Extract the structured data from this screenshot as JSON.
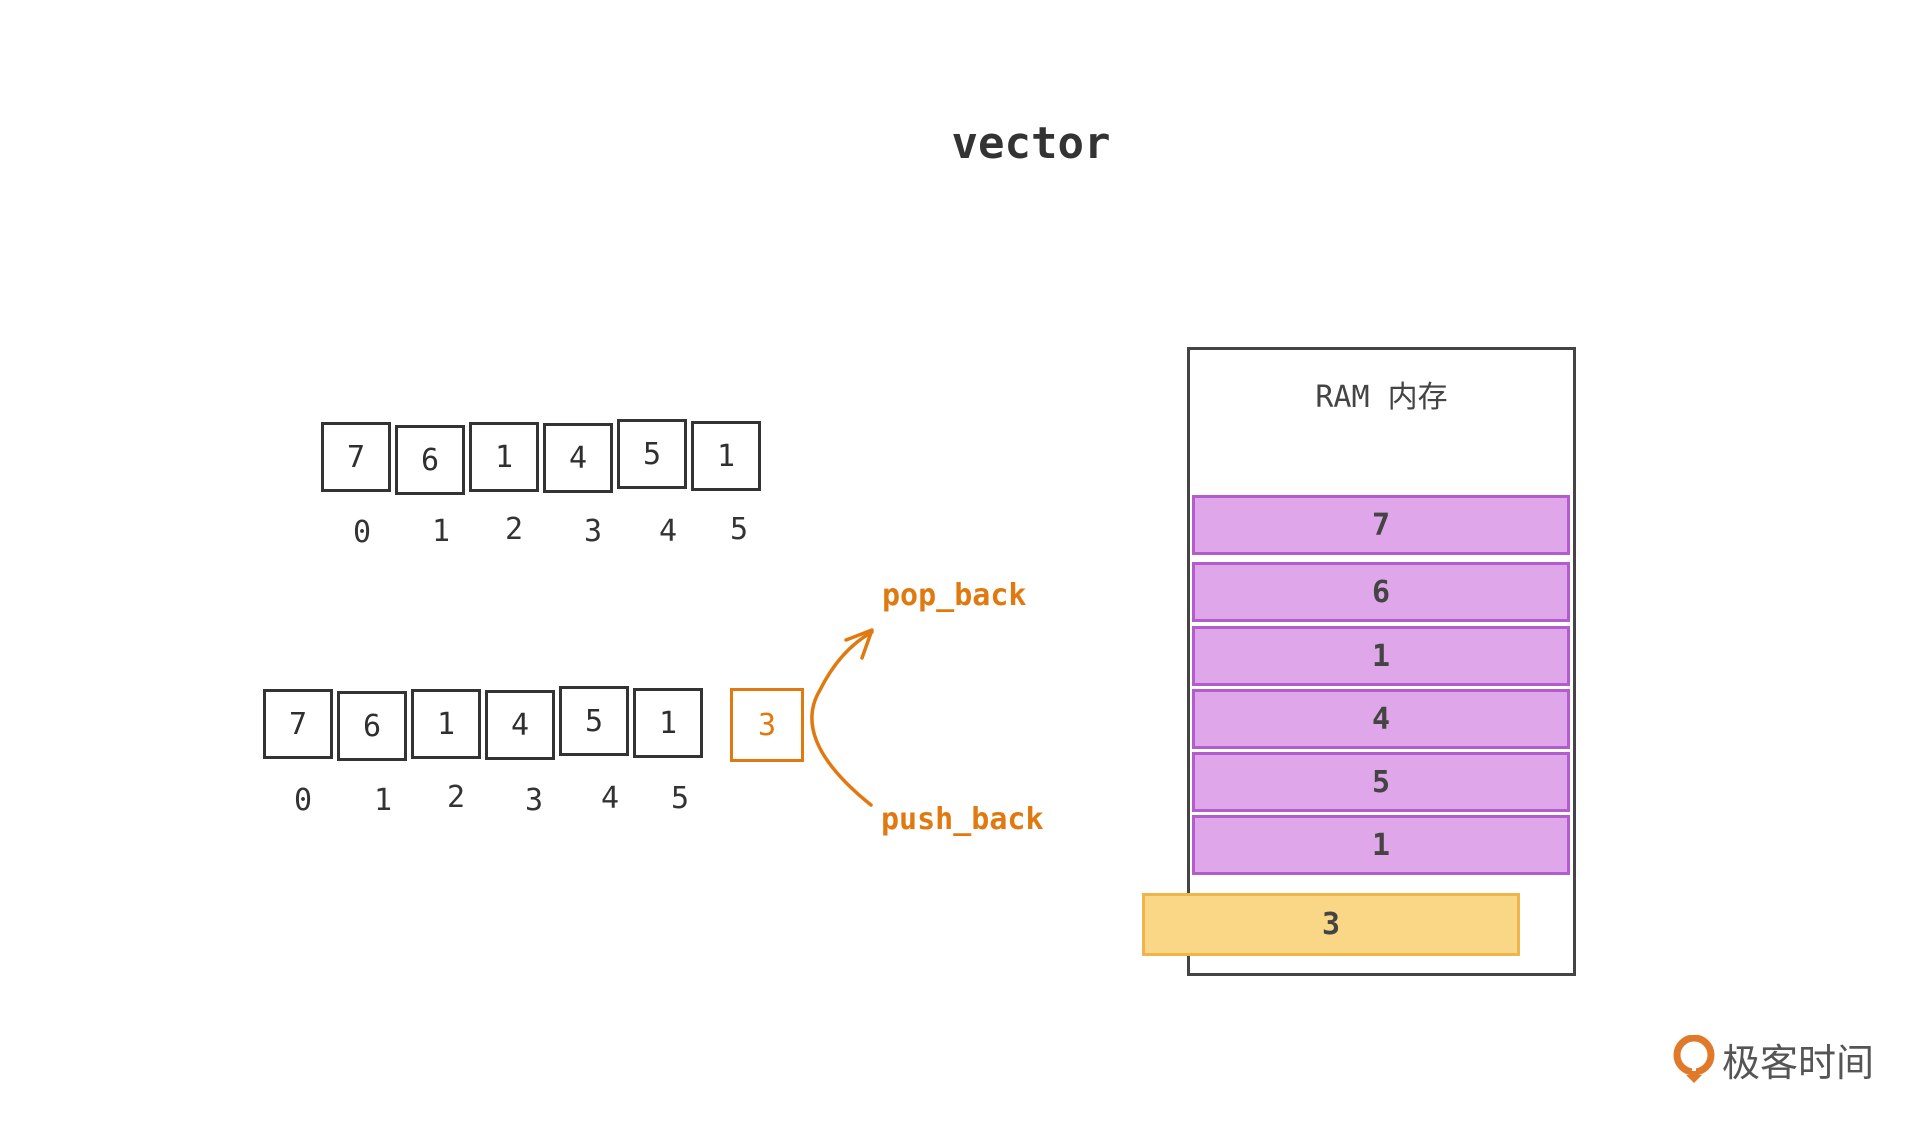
{
  "title": "vector",
  "top_array": {
    "values": [
      "7",
      "6",
      "1",
      "4",
      "5",
      "1"
    ],
    "indices": [
      "0",
      "1",
      "2",
      "3",
      "4",
      "5"
    ]
  },
  "bottom_array": {
    "values": [
      "7",
      "6",
      "1",
      "4",
      "5",
      "1"
    ],
    "indices": [
      "0",
      "1",
      "2",
      "3",
      "4",
      "5"
    ],
    "new_value": "3"
  },
  "operations": {
    "pop": "pop_back",
    "push": "push_back"
  },
  "ram": {
    "label": "RAM 内存",
    "slots": [
      "7",
      "6",
      "1",
      "4",
      "5",
      "1"
    ],
    "new_slot": "3"
  },
  "logo": {
    "text": "极客时间"
  },
  "colors": {
    "accent": "#e07a10",
    "memory_slot": "#dfa6ea",
    "new_slot": "#fad786",
    "stroke": "#333333"
  }
}
